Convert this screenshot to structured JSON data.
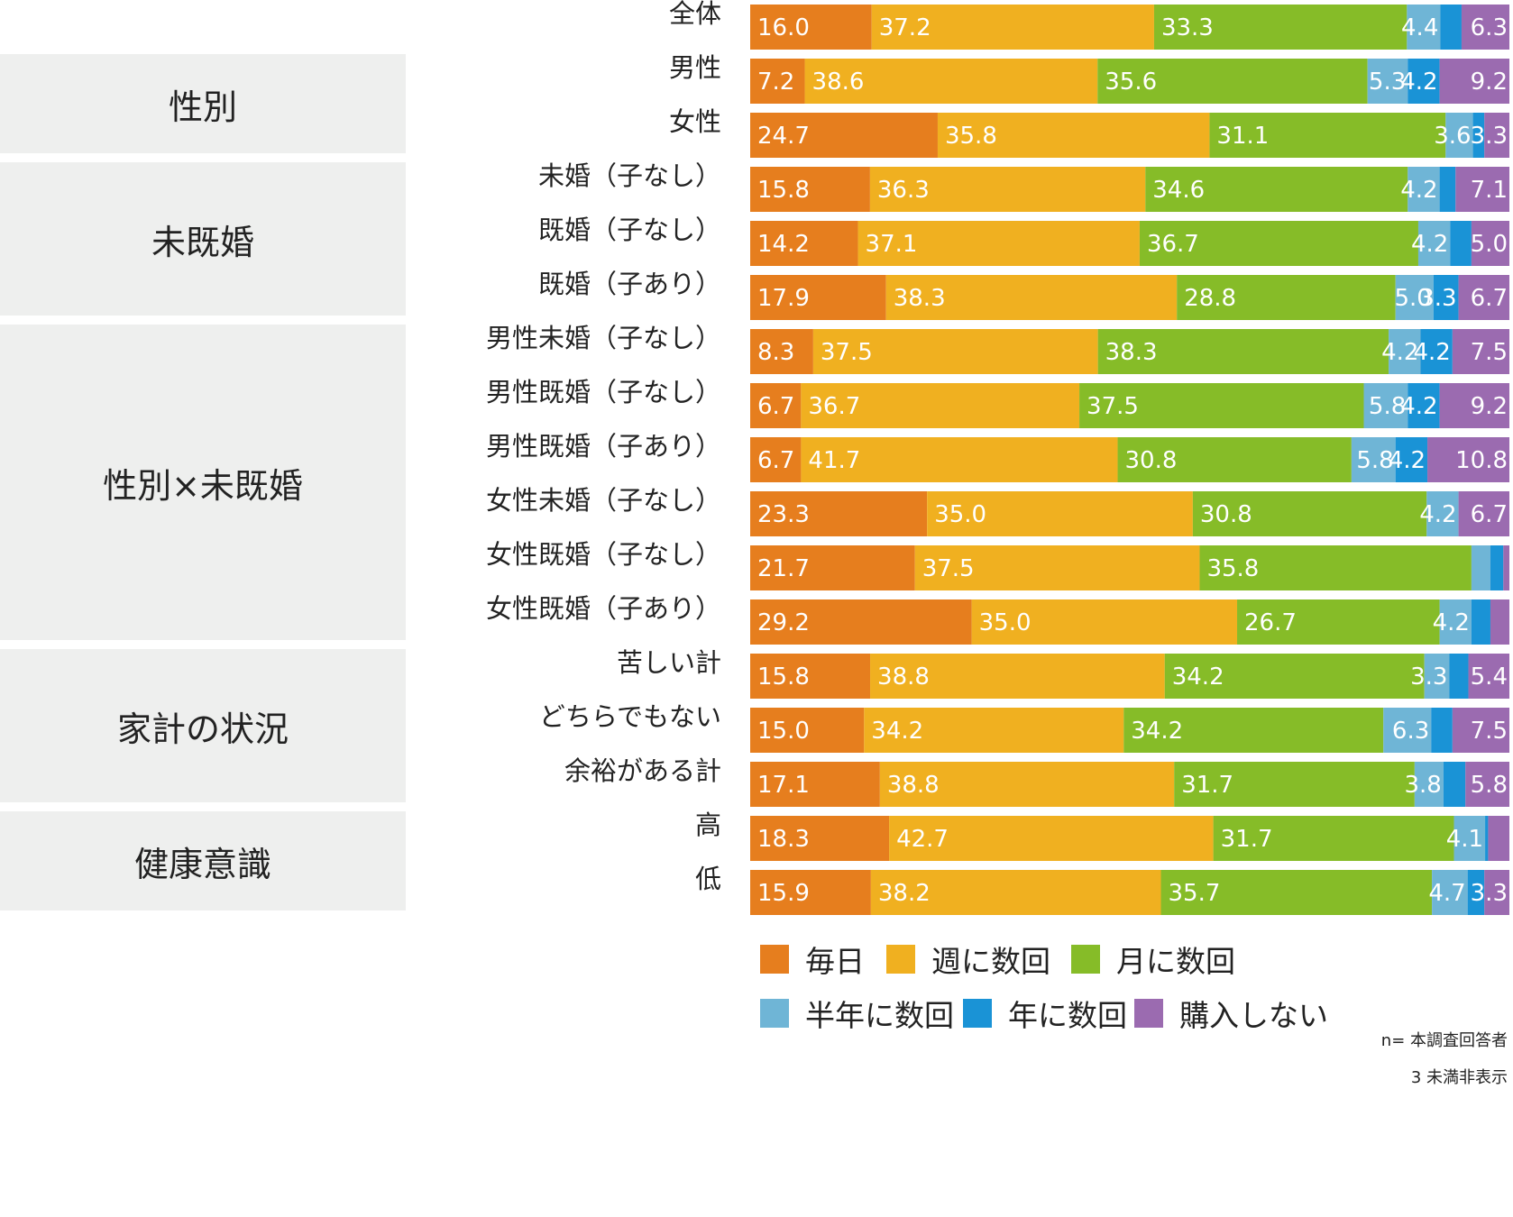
{
  "groups": [
    {
      "label": "性別",
      "from": 1,
      "to": 2
    },
    {
      "label": "未既婚",
      "from": 3,
      "to": 5
    },
    {
      "label": "性別×未既婚",
      "from": 6,
      "to": 11
    },
    {
      "label": "家計の状況",
      "from": 12,
      "to": 14
    },
    {
      "label": "健康意識",
      "from": 15,
      "to": 16
    }
  ],
  "notes": {
    "n": "n= 本調査回答者",
    "threshold": "3 未満非表示"
  },
  "chart_data": {
    "type": "bar",
    "orientation": "horizontal",
    "stacked": true,
    "xlim": [
      0,
      100
    ],
    "legend_position": "bottom",
    "label_threshold": 3,
    "categories": [
      "全体",
      "男性",
      "女性",
      "未婚（子なし）",
      "既婚（子なし）",
      "既婚（子あり）",
      "男性未婚（子なし）",
      "男性既婚（子なし）",
      "男性既婚（子あり）",
      "女性未婚（子なし）",
      "女性既婚（子なし）",
      "女性既婚（子あり）",
      "苦しい計",
      "どちらでもない",
      "余裕がある計",
      "高",
      "低"
    ],
    "series": [
      {
        "name": "毎日",
        "color": "#e67e1e",
        "values": [
          16.0,
          7.2,
          24.7,
          15.8,
          14.2,
          17.9,
          8.3,
          6.7,
          6.7,
          23.3,
          21.7,
          29.2,
          15.8,
          15.0,
          17.1,
          18.3,
          15.9
        ]
      },
      {
        "name": "週に数回",
        "color": "#f0b020",
        "values": [
          37.2,
          38.6,
          35.8,
          36.3,
          37.1,
          38.3,
          37.5,
          36.7,
          41.7,
          35.0,
          37.5,
          35.0,
          38.8,
          34.2,
          38.8,
          42.7,
          38.2
        ]
      },
      {
        "name": "月に数回",
        "color": "#86bc28",
        "values": [
          33.3,
          35.6,
          31.1,
          34.6,
          36.7,
          28.8,
          38.3,
          37.5,
          30.8,
          30.8,
          35.8,
          26.7,
          34.2,
          34.2,
          31.7,
          31.7,
          35.7
        ]
      },
      {
        "name": "半年に数回",
        "color": "#6fb5d6",
        "values": [
          4.4,
          5.3,
          3.6,
          4.2,
          4.2,
          5.0,
          4.2,
          5.8,
          5.8,
          4.2,
          2.5,
          4.2,
          3.3,
          6.3,
          3.8,
          4.1,
          4.7
        ]
      },
      {
        "name": "年に数回",
        "color": "#1a93d6",
        "values": [
          2.8,
          4.2,
          1.5,
          2.1,
          2.8,
          3.3,
          4.2,
          4.2,
          4.2,
          0.0,
          1.7,
          2.5,
          2.5,
          2.8,
          2.9,
          0.4,
          2.2
        ]
      },
      {
        "name": "購入しない",
        "color": "#9b6bb0",
        "values": [
          6.3,
          9.2,
          3.3,
          7.1,
          5.0,
          6.7,
          7.5,
          9.2,
          10.8,
          6.7,
          0.8,
          2.5,
          5.4,
          7.5,
          5.8,
          2.8,
          3.3
        ]
      }
    ]
  }
}
